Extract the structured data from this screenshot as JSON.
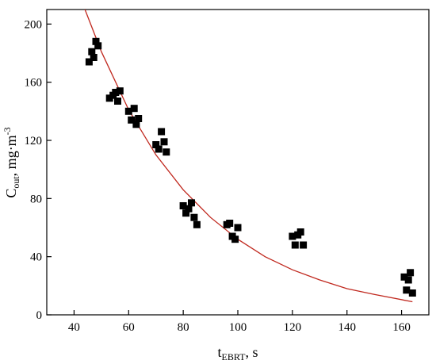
{
  "chart_data": {
    "type": "scatter",
    "xlabel": {
      "main": "t",
      "sub": "EBRT",
      "rest": ", s"
    },
    "ylabel": {
      "main": "C",
      "sub": "out",
      "rest": ", mg·m",
      "sup": "-3"
    },
    "xlim": [
      30,
      170
    ],
    "ylim": [
      0,
      210
    ],
    "xticks": [
      40,
      60,
      80,
      100,
      120,
      140,
      160
    ],
    "yticks": [
      0,
      40,
      80,
      120,
      160,
      200
    ],
    "grid": false,
    "legend": "none",
    "colors": {
      "points": "#000000",
      "fit": "#c0281e"
    },
    "points": [
      {
        "x": 45.5,
        "y": 174
      },
      {
        "x": 46.5,
        "y": 181
      },
      {
        "x": 47.2,
        "y": 177
      },
      {
        "x": 48.0,
        "y": 188
      },
      {
        "x": 48.8,
        "y": 185
      },
      {
        "x": 53.0,
        "y": 149
      },
      {
        "x": 54.3,
        "y": 151
      },
      {
        "x": 55.2,
        "y": 153
      },
      {
        "x": 56.0,
        "y": 147
      },
      {
        "x": 56.8,
        "y": 154
      },
      {
        "x": 60.0,
        "y": 140
      },
      {
        "x": 61.0,
        "y": 134
      },
      {
        "x": 62.0,
        "y": 142
      },
      {
        "x": 62.8,
        "y": 131
      },
      {
        "x": 63.6,
        "y": 135
      },
      {
        "x": 70.0,
        "y": 117
      },
      {
        "x": 71.0,
        "y": 114
      },
      {
        "x": 72.0,
        "y": 126
      },
      {
        "x": 73.0,
        "y": 119
      },
      {
        "x": 73.8,
        "y": 112
      },
      {
        "x": 80.0,
        "y": 75
      },
      {
        "x": 81.0,
        "y": 70
      },
      {
        "x": 82.0,
        "y": 73
      },
      {
        "x": 83.0,
        "y": 77
      },
      {
        "x": 84.0,
        "y": 67
      },
      {
        "x": 85.0,
        "y": 62
      },
      {
        "x": 96.0,
        "y": 62
      },
      {
        "x": 97.0,
        "y": 63
      },
      {
        "x": 98.0,
        "y": 54
      },
      {
        "x": 99.0,
        "y": 52
      },
      {
        "x": 100.0,
        "y": 60
      },
      {
        "x": 120.0,
        "y": 54
      },
      {
        "x": 121.0,
        "y": 48
      },
      {
        "x": 122.0,
        "y": 55
      },
      {
        "x": 123.0,
        "y": 57
      },
      {
        "x": 124.0,
        "y": 48
      },
      {
        "x": 161.0,
        "y": 26
      },
      {
        "x": 161.8,
        "y": 17
      },
      {
        "x": 162.5,
        "y": 24
      },
      {
        "x": 163.2,
        "y": 29
      },
      {
        "x": 164.0,
        "y": 15
      }
    ],
    "fit_curve": [
      {
        "x": 44,
        "y": 210
      },
      {
        "x": 50,
        "y": 181
      },
      {
        "x": 60,
        "y": 141
      },
      {
        "x": 70,
        "y": 110
      },
      {
        "x": 80,
        "y": 86
      },
      {
        "x": 90,
        "y": 67
      },
      {
        "x": 100,
        "y": 52
      },
      {
        "x": 110,
        "y": 40
      },
      {
        "x": 120,
        "y": 31
      },
      {
        "x": 130,
        "y": 24
      },
      {
        "x": 140,
        "y": 18
      },
      {
        "x": 150,
        "y": 14
      },
      {
        "x": 164,
        "y": 9
      }
    ]
  }
}
